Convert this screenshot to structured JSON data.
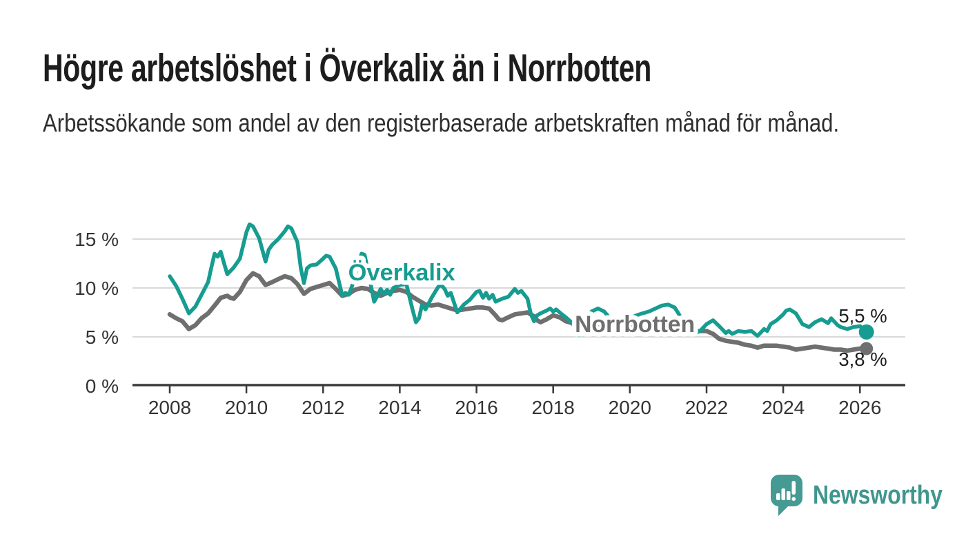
{
  "header": {
    "title": "Högre arbetslöshet i Överkalix än i Norrbotten",
    "subtitle": "Arbetssökande som andel av den registerbaserade arbetskraften månad för månad."
  },
  "brand": {
    "name": "Newsworthy"
  },
  "colors": {
    "overkalix": "#169c90",
    "norrbotten": "#6f6f6f",
    "grid": "#d9d9d9",
    "axis": "#3a3a3a",
    "tick_text": "#333333",
    "value_text": "#1d1d1d",
    "halo": "#ffffff",
    "brand_teal": "#459a93"
  },
  "chart_data": {
    "type": "line",
    "title": "Högre arbetslöshet i Överkalix än i Norrbotten",
    "subtitle": "Arbetssökande som andel av den registerbaserade arbetskraften månad för månad.",
    "xlabel": "",
    "ylabel": "",
    "grid": true,
    "legend": "inline-labels",
    "x_axis": {
      "range": [
        2007.0,
        2027.2
      ],
      "ticks": [
        2008,
        2010,
        2012,
        2014,
        2016,
        2018,
        2020,
        2022,
        2024,
        2026
      ]
    },
    "y_axis": {
      "unit": "%",
      "range": [
        0,
        17.5
      ],
      "ticks": [
        {
          "value": 0,
          "label": "0 %"
        },
        {
          "value": 5,
          "label": "5 %"
        },
        {
          "value": 10,
          "label": "10 %"
        },
        {
          "value": 15,
          "label": "15 %"
        }
      ]
    },
    "series": [
      {
        "id": "overkalix",
        "name": "Överkalix",
        "color": "#169c90",
        "end_label": "5,5 %",
        "end_value": 5.5,
        "label_at": [
          2014.05,
          10.77
        ],
        "points": [
          [
            2008.0,
            11.2
          ],
          [
            2008.17,
            10.2
          ],
          [
            2008.33,
            8.9
          ],
          [
            2008.5,
            7.4
          ],
          [
            2008.67,
            8.1
          ],
          [
            2008.83,
            9.3
          ],
          [
            2009.0,
            10.6
          ],
          [
            2009.08,
            12.0
          ],
          [
            2009.17,
            13.5
          ],
          [
            2009.25,
            13.2
          ],
          [
            2009.33,
            13.7
          ],
          [
            2009.5,
            11.4
          ],
          [
            2009.67,
            12.1
          ],
          [
            2009.83,
            13.0
          ],
          [
            2010.0,
            15.7
          ],
          [
            2010.08,
            16.5
          ],
          [
            2010.17,
            16.3
          ],
          [
            2010.33,
            15.1
          ],
          [
            2010.5,
            12.7
          ],
          [
            2010.58,
            13.9
          ],
          [
            2010.67,
            14.4
          ],
          [
            2010.83,
            15.0
          ],
          [
            2011.0,
            15.8
          ],
          [
            2011.08,
            16.3
          ],
          [
            2011.17,
            16.1
          ],
          [
            2011.33,
            14.7
          ],
          [
            2011.42,
            12.0
          ],
          [
            2011.5,
            10.5
          ],
          [
            2011.58,
            12.0
          ],
          [
            2011.67,
            12.3
          ],
          [
            2011.83,
            12.4
          ],
          [
            2012.0,
            13.0
          ],
          [
            2012.08,
            13.3
          ],
          [
            2012.17,
            13.2
          ],
          [
            2012.33,
            12.0
          ],
          [
            2012.5,
            9.2
          ],
          [
            2012.58,
            9.5
          ],
          [
            2012.67,
            9.3
          ],
          [
            2012.83,
            11.0
          ],
          [
            2013.0,
            13.5
          ],
          [
            2013.08,
            13.4
          ],
          [
            2013.17,
            11.8
          ],
          [
            2013.33,
            8.6
          ],
          [
            2013.42,
            9.2
          ],
          [
            2013.5,
            9.9
          ],
          [
            2013.58,
            9.4
          ],
          [
            2013.67,
            9.8
          ],
          [
            2013.75,
            9.3
          ],
          [
            2013.83,
            10.0
          ],
          [
            2014.0,
            10.3
          ],
          [
            2014.17,
            10.4
          ],
          [
            2014.33,
            7.8
          ],
          [
            2014.42,
            6.5
          ],
          [
            2014.5,
            6.9
          ],
          [
            2014.58,
            8.3
          ],
          [
            2014.67,
            7.8
          ],
          [
            2014.83,
            9.0
          ],
          [
            2015.0,
            10.1
          ],
          [
            2015.08,
            10.3
          ],
          [
            2015.17,
            9.9
          ],
          [
            2015.25,
            9.2
          ],
          [
            2015.33,
            9.5
          ],
          [
            2015.5,
            7.5
          ],
          [
            2015.67,
            8.3
          ],
          [
            2015.83,
            8.8
          ],
          [
            2016.0,
            9.6
          ],
          [
            2016.08,
            9.7
          ],
          [
            2016.17,
            9.0
          ],
          [
            2016.25,
            9.5
          ],
          [
            2016.33,
            8.9
          ],
          [
            2016.42,
            9.3
          ],
          [
            2016.5,
            8.6
          ],
          [
            2016.67,
            8.9
          ],
          [
            2016.83,
            9.1
          ],
          [
            2017.0,
            9.9
          ],
          [
            2017.08,
            9.5
          ],
          [
            2017.17,
            9.7
          ],
          [
            2017.33,
            8.9
          ],
          [
            2017.42,
            7.3
          ],
          [
            2017.5,
            6.6
          ],
          [
            2017.58,
            7.2
          ],
          [
            2017.67,
            7.4
          ],
          [
            2017.83,
            7.7
          ],
          [
            2017.92,
            7.9
          ],
          [
            2018.0,
            7.6
          ],
          [
            2018.08,
            7.8
          ],
          [
            2018.17,
            7.5
          ],
          [
            2018.33,
            7.0
          ],
          [
            2018.5,
            6.4
          ],
          [
            2018.58,
            5.8
          ],
          [
            2018.67,
            5.2
          ],
          [
            2018.83,
            6.2
          ],
          [
            2019.0,
            7.6
          ],
          [
            2019.17,
            7.9
          ],
          [
            2019.33,
            7.6
          ],
          [
            2019.5,
            6.8
          ],
          [
            2019.67,
            6.4
          ],
          [
            2019.83,
            6.6
          ],
          [
            2020.0,
            6.9
          ],
          [
            2020.17,
            7.2
          ],
          [
            2020.33,
            7.4
          ],
          [
            2020.5,
            7.6
          ],
          [
            2020.67,
            7.9
          ],
          [
            2020.83,
            8.2
          ],
          [
            2021.0,
            8.3
          ],
          [
            2021.17,
            8.0
          ],
          [
            2021.33,
            7.0
          ],
          [
            2021.5,
            5.8
          ],
          [
            2021.67,
            5.3
          ],
          [
            2021.83,
            5.6
          ],
          [
            2022.0,
            6.3
          ],
          [
            2022.17,
            6.7
          ],
          [
            2022.33,
            6.1
          ],
          [
            2022.5,
            5.4
          ],
          [
            2022.58,
            5.6
          ],
          [
            2022.67,
            5.3
          ],
          [
            2022.83,
            5.6
          ],
          [
            2023.0,
            5.5
          ],
          [
            2023.17,
            5.6
          ],
          [
            2023.33,
            5.1
          ],
          [
            2023.5,
            5.8
          ],
          [
            2023.58,
            5.6
          ],
          [
            2023.67,
            6.3
          ],
          [
            2023.83,
            6.7
          ],
          [
            2024.0,
            7.3
          ],
          [
            2024.08,
            7.7
          ],
          [
            2024.17,
            7.8
          ],
          [
            2024.33,
            7.4
          ],
          [
            2024.5,
            6.3
          ],
          [
            2024.67,
            6.0
          ],
          [
            2024.83,
            6.5
          ],
          [
            2025.0,
            6.8
          ],
          [
            2025.17,
            6.4
          ],
          [
            2025.25,
            6.9
          ],
          [
            2025.42,
            6.2
          ],
          [
            2025.5,
            6.0
          ],
          [
            2025.67,
            5.8
          ],
          [
            2025.83,
            6.0
          ],
          [
            2026.0,
            6.1
          ],
          [
            2026.17,
            5.5
          ]
        ]
      },
      {
        "id": "norrbotten",
        "name": "Norrbotten",
        "color": "#6f6f6f",
        "end_label": "3,8 %",
        "end_value": 3.8,
        "label_at": [
          2020.13,
          5.49
        ],
        "points": [
          [
            2008.0,
            7.3
          ],
          [
            2008.17,
            6.9
          ],
          [
            2008.33,
            6.6
          ],
          [
            2008.5,
            5.8
          ],
          [
            2008.67,
            6.2
          ],
          [
            2008.83,
            6.9
          ],
          [
            2009.0,
            7.4
          ],
          [
            2009.17,
            8.2
          ],
          [
            2009.33,
            9.0
          ],
          [
            2009.5,
            9.2
          ],
          [
            2009.58,
            9.0
          ],
          [
            2009.67,
            8.9
          ],
          [
            2009.83,
            9.6
          ],
          [
            2010.0,
            10.8
          ],
          [
            2010.17,
            11.5
          ],
          [
            2010.33,
            11.2
          ],
          [
            2010.5,
            10.3
          ],
          [
            2010.67,
            10.6
          ],
          [
            2010.83,
            10.9
          ],
          [
            2011.0,
            11.2
          ],
          [
            2011.17,
            11.0
          ],
          [
            2011.33,
            10.4
          ],
          [
            2011.5,
            9.4
          ],
          [
            2011.67,
            9.9
          ],
          [
            2011.83,
            10.1
          ],
          [
            2012.0,
            10.3
          ],
          [
            2012.17,
            10.5
          ],
          [
            2012.33,
            9.9
          ],
          [
            2012.5,
            9.2
          ],
          [
            2012.67,
            9.4
          ],
          [
            2012.83,
            9.8
          ],
          [
            2013.0,
            10.0
          ],
          [
            2013.17,
            9.9
          ],
          [
            2013.33,
            9.5
          ],
          [
            2013.5,
            9.2
          ],
          [
            2013.67,
            9.5
          ],
          [
            2013.83,
            9.7
          ],
          [
            2014.0,
            9.8
          ],
          [
            2014.17,
            9.6
          ],
          [
            2014.33,
            9.1
          ],
          [
            2014.5,
            8.7
          ],
          [
            2014.67,
            8.3
          ],
          [
            2014.83,
            8.2
          ],
          [
            2015.0,
            8.3
          ],
          [
            2015.17,
            8.1
          ],
          [
            2015.33,
            7.9
          ],
          [
            2015.5,
            7.7
          ],
          [
            2015.67,
            7.8
          ],
          [
            2015.83,
            7.9
          ],
          [
            2016.0,
            8.0
          ],
          [
            2016.17,
            8.0
          ],
          [
            2016.33,
            7.9
          ],
          [
            2016.5,
            7.2
          ],
          [
            2016.58,
            6.8
          ],
          [
            2016.67,
            6.7
          ],
          [
            2016.83,
            7.0
          ],
          [
            2017.0,
            7.3
          ],
          [
            2017.17,
            7.4
          ],
          [
            2017.33,
            7.5
          ],
          [
            2017.5,
            7.1
          ],
          [
            2017.58,
            6.7
          ],
          [
            2017.67,
            6.5
          ],
          [
            2017.83,
            6.8
          ],
          [
            2018.0,
            7.2
          ],
          [
            2018.17,
            7.0
          ],
          [
            2018.33,
            6.6
          ],
          [
            2018.5,
            6.4
          ],
          [
            2018.67,
            6.2
          ],
          [
            2018.83,
            6.0
          ],
          [
            2019.0,
            6.1
          ],
          [
            2019.17,
            6.2
          ],
          [
            2019.33,
            6.0
          ],
          [
            2019.5,
            5.8
          ],
          [
            2019.67,
            5.7
          ],
          [
            2019.83,
            5.9
          ],
          [
            2020.0,
            6.1
          ],
          [
            2020.17,
            6.6
          ],
          [
            2020.33,
            6.9
          ],
          [
            2020.5,
            6.8
          ],
          [
            2020.67,
            6.6
          ],
          [
            2020.83,
            6.4
          ],
          [
            2021.0,
            6.2
          ],
          [
            2021.17,
            6.0
          ],
          [
            2021.33,
            5.8
          ],
          [
            2021.5,
            5.6
          ],
          [
            2021.67,
            5.5
          ],
          [
            2021.83,
            5.6
          ],
          [
            2022.0,
            5.6
          ],
          [
            2022.17,
            5.3
          ],
          [
            2022.33,
            4.8
          ],
          [
            2022.5,
            4.6
          ],
          [
            2022.67,
            4.5
          ],
          [
            2022.83,
            4.4
          ],
          [
            2023.0,
            4.2
          ],
          [
            2023.17,
            4.1
          ],
          [
            2023.33,
            3.9
          ],
          [
            2023.5,
            4.1
          ],
          [
            2023.67,
            4.1
          ],
          [
            2023.83,
            4.1
          ],
          [
            2024.0,
            4.0
          ],
          [
            2024.17,
            3.9
          ],
          [
            2024.33,
            3.7
          ],
          [
            2024.5,
            3.8
          ],
          [
            2024.67,
            3.9
          ],
          [
            2024.83,
            4.0
          ],
          [
            2025.0,
            3.9
          ],
          [
            2025.17,
            3.8
          ],
          [
            2025.33,
            3.7
          ],
          [
            2025.5,
            3.7
          ],
          [
            2025.67,
            3.6
          ],
          [
            2025.83,
            3.7
          ],
          [
            2026.0,
            3.8
          ],
          [
            2026.17,
            3.8
          ]
        ]
      }
    ]
  }
}
